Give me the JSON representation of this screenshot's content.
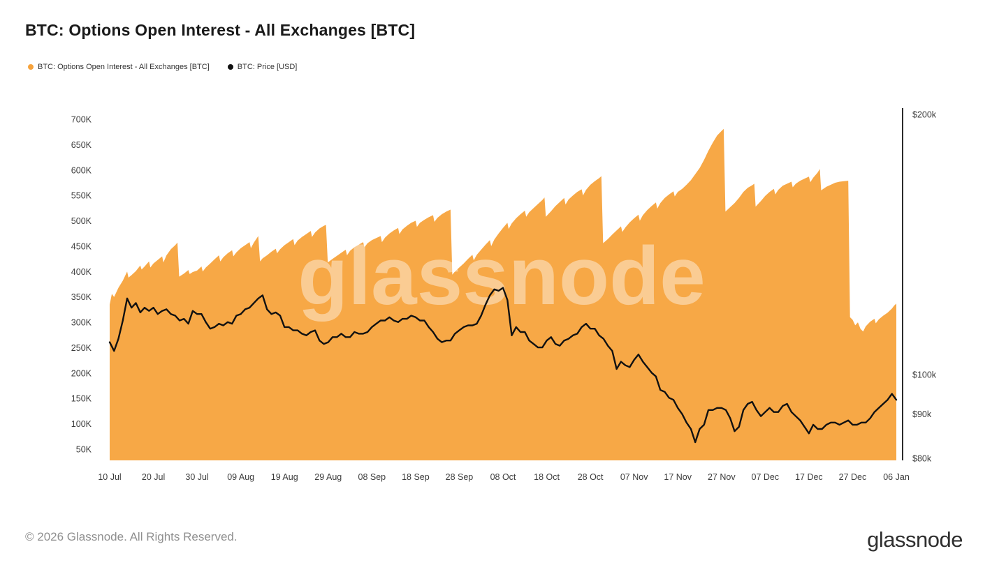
{
  "title": "BTC: Options Open Interest - All Exchanges [BTC]",
  "legend": [
    {
      "label": "BTC: Options Open Interest - All Exchanges [BTC]",
      "color": "#f7a33c"
    },
    {
      "label": "BTC: Price [USD]",
      "color": "#111111"
    }
  ],
  "footer": {
    "copyright": "© 2026 Glassnode. All Rights Reserved.",
    "logo": "glassnode"
  },
  "chart_data": {
    "type": "mixed",
    "title": "BTC: Options Open Interest - All Exchanges [BTC]",
    "grid": false,
    "watermark": "glassnode",
    "x_range_days": [
      0,
      180
    ],
    "x_axis": {
      "ticks": [
        {
          "day": 0,
          "label": "10 Jul"
        },
        {
          "day": 10,
          "label": "20 Jul"
        },
        {
          "day": 20,
          "label": "30 Jul"
        },
        {
          "day": 30,
          "label": "09 Aug"
        },
        {
          "day": 40,
          "label": "19 Aug"
        },
        {
          "day": 50,
          "label": "29 Aug"
        },
        {
          "day": 60,
          "label": "08 Sep"
        },
        {
          "day": 70,
          "label": "18 Sep"
        },
        {
          "day": 80,
          "label": "28 Sep"
        },
        {
          "day": 90,
          "label": "08 Oct"
        },
        {
          "day": 100,
          "label": "18 Oct"
        },
        {
          "day": 110,
          "label": "28 Oct"
        },
        {
          "day": 120,
          "label": "07 Nov"
        },
        {
          "day": 130,
          "label": "17 Nov"
        },
        {
          "day": 140,
          "label": "27 Nov"
        },
        {
          "day": 150,
          "label": "07 Dec"
        },
        {
          "day": 160,
          "label": "17 Dec"
        },
        {
          "day": 170,
          "label": "27 Dec"
        },
        {
          "day": 180,
          "label": "06 Jan"
        }
      ]
    },
    "left_axis": {
      "unit": "K",
      "ticks": [
        700,
        650,
        600,
        550,
        500,
        450,
        400,
        350,
        300,
        250,
        200,
        150,
        100,
        50
      ]
    },
    "right_axis": {
      "scale": "log",
      "ticks": [
        {
          "value": 200,
          "label": "$200k"
        },
        {
          "value": 100,
          "label": "$100k"
        },
        {
          "value": 90,
          "label": "$90k"
        },
        {
          "value": 80,
          "label": "$80k"
        }
      ]
    },
    "series": [
      {
        "name": "BTC: Options Open Interest - All Exchanges [BTC]",
        "type": "area",
        "axis": "left",
        "unit": "K BTC",
        "color": "#f7a33c",
        "points": [
          [
            0,
            335
          ],
          [
            0.5,
            356
          ],
          [
            1,
            350
          ],
          [
            2,
            368
          ],
          [
            3,
            382
          ],
          [
            4,
            400
          ],
          [
            4.3,
            388
          ],
          [
            5,
            393
          ],
          [
            6,
            401
          ],
          [
            7,
            412
          ],
          [
            7.3,
            404
          ],
          [
            8,
            410
          ],
          [
            9,
            420
          ],
          [
            9.3,
            408
          ],
          [
            10,
            416
          ],
          [
            11,
            423
          ],
          [
            12,
            430
          ],
          [
            12.3,
            418
          ],
          [
            13,
            432
          ],
          [
            14,
            444
          ],
          [
            15,
            452
          ],
          [
            15.5,
            457
          ],
          [
            15.9,
            390
          ],
          [
            17,
            396
          ],
          [
            18,
            403
          ],
          [
            18.3,
            395
          ],
          [
            19,
            399
          ],
          [
            20,
            402
          ],
          [
            21,
            410
          ],
          [
            21.3,
            400
          ],
          [
            22,
            408
          ],
          [
            23,
            416
          ],
          [
            24,
            424
          ],
          [
            25,
            432
          ],
          [
            25.3,
            420
          ],
          [
            26,
            428
          ],
          [
            27,
            436
          ],
          [
            28,
            442
          ],
          [
            28.3,
            430
          ],
          [
            29,
            438
          ],
          [
            30,
            446
          ],
          [
            31,
            452
          ],
          [
            32,
            458
          ],
          [
            32.3,
            446
          ],
          [
            33,
            457
          ],
          [
            34,
            470
          ],
          [
            34.4,
            420
          ],
          [
            35,
            426
          ],
          [
            36,
            432
          ],
          [
            37,
            439
          ],
          [
            38,
            445
          ],
          [
            38.3,
            436
          ],
          [
            39,
            444
          ],
          [
            40,
            452
          ],
          [
            41,
            458
          ],
          [
            42,
            464
          ],
          [
            42.3,
            452
          ],
          [
            43,
            461
          ],
          [
            44,
            468
          ],
          [
            45,
            474
          ],
          [
            46,
            480
          ],
          [
            46.3,
            468
          ],
          [
            47,
            477
          ],
          [
            48,
            485
          ],
          [
            49,
            490
          ],
          [
            49.5,
            492
          ],
          [
            49.9,
            418
          ],
          [
            51,
            425
          ],
          [
            52,
            431
          ],
          [
            53,
            437
          ],
          [
            54,
            443
          ],
          [
            54.3,
            432
          ],
          [
            55,
            441
          ],
          [
            56,
            448
          ],
          [
            57,
            453
          ],
          [
            58,
            458
          ],
          [
            58.3,
            448
          ],
          [
            59,
            456
          ],
          [
            60,
            462
          ],
          [
            61,
            466
          ],
          [
            62,
            470
          ],
          [
            62.3,
            458
          ],
          [
            63,
            467
          ],
          [
            64,
            475
          ],
          [
            65,
            481
          ],
          [
            66,
            486
          ],
          [
            66.3,
            474
          ],
          [
            67,
            483
          ],
          [
            68,
            490
          ],
          [
            69,
            496
          ],
          [
            70,
            500
          ],
          [
            70.3,
            488
          ],
          [
            71,
            496
          ],
          [
            72,
            502
          ],
          [
            73,
            507
          ],
          [
            74,
            511
          ],
          [
            74.3,
            498
          ],
          [
            75,
            506
          ],
          [
            76,
            513
          ],
          [
            77,
            518
          ],
          [
            78,
            522
          ],
          [
            78.4,
            394
          ],
          [
            79,
            400
          ],
          [
            80,
            408
          ],
          [
            81,
            416
          ],
          [
            82,
            425
          ],
          [
            83,
            433
          ],
          [
            83.3,
            422
          ],
          [
            84,
            433
          ],
          [
            85,
            443
          ],
          [
            86,
            453
          ],
          [
            87,
            462
          ],
          [
            87.3,
            450
          ],
          [
            88,
            463
          ],
          [
            89,
            475
          ],
          [
            90,
            486
          ],
          [
            91,
            496
          ],
          [
            91.3,
            484
          ],
          [
            92,
            495
          ],
          [
            93,
            505
          ],
          [
            94,
            513
          ],
          [
            95,
            520
          ],
          [
            95.3,
            508
          ],
          [
            96,
            517
          ],
          [
            97,
            525
          ],
          [
            98,
            533
          ],
          [
            99,
            541
          ],
          [
            99.5,
            546
          ],
          [
            99.8,
            508
          ],
          [
            101,
            519
          ],
          [
            102,
            529
          ],
          [
            103,
            537
          ],
          [
            104,
            545
          ],
          [
            104.3,
            532
          ],
          [
            105,
            542
          ],
          [
            106,
            550
          ],
          [
            107,
            557
          ],
          [
            108,
            562
          ],
          [
            108.3,
            550
          ],
          [
            109,
            561
          ],
          [
            110,
            571
          ],
          [
            111,
            578
          ],
          [
            112,
            584
          ],
          [
            112.5,
            588
          ],
          [
            112.9,
            456
          ],
          [
            114,
            464
          ],
          [
            115,
            473
          ],
          [
            116,
            481
          ],
          [
            117,
            489
          ],
          [
            117.3,
            478
          ],
          [
            118,
            487
          ],
          [
            119,
            497
          ],
          [
            120,
            505
          ],
          [
            121,
            512
          ],
          [
            121.3,
            500
          ],
          [
            122,
            511
          ],
          [
            123,
            521
          ],
          [
            124,
            529
          ],
          [
            125,
            536
          ],
          [
            125.3,
            524
          ],
          [
            126,
            535
          ],
          [
            127,
            545
          ],
          [
            128,
            552
          ],
          [
            129,
            558
          ],
          [
            129.3,
            548
          ],
          [
            130,
            557
          ],
          [
            131,
            563
          ],
          [
            132,
            571
          ],
          [
            133,
            580
          ],
          [
            134,
            592
          ],
          [
            135,
            604
          ],
          [
            136,
            620
          ],
          [
            137,
            638
          ],
          [
            138,
            654
          ],
          [
            139,
            668
          ],
          [
            140,
            677
          ],
          [
            140.5,
            681
          ],
          [
            140.9,
            518
          ],
          [
            142,
            527
          ],
          [
            143,
            535
          ],
          [
            144,
            545
          ],
          [
            145,
            557
          ],
          [
            146,
            565
          ],
          [
            147,
            570
          ],
          [
            147.5,
            573
          ],
          [
            147.8,
            528
          ],
          [
            149,
            539
          ],
          [
            150,
            549
          ],
          [
            151,
            557
          ],
          [
            152,
            563
          ],
          [
            152.3,
            552
          ],
          [
            153,
            561
          ],
          [
            154,
            569
          ],
          [
            155,
            573
          ],
          [
            156,
            577
          ],
          [
            156.3,
            566
          ],
          [
            157,
            573
          ],
          [
            158,
            579
          ],
          [
            159,
            583
          ],
          [
            160,
            587
          ],
          [
            160.3,
            576
          ],
          [
            161,
            585
          ],
          [
            162,
            595
          ],
          [
            162.5,
            602
          ],
          [
            162.8,
            560
          ],
          [
            164,
            567
          ],
          [
            165,
            571
          ],
          [
            166,
            575
          ],
          [
            167,
            577
          ],
          [
            168,
            578
          ],
          [
            169,
            579
          ],
          [
            169.4,
            310
          ],
          [
            170,
            305
          ],
          [
            170.6,
            294
          ],
          [
            171.2,
            300
          ],
          [
            171.8,
            287
          ],
          [
            172.4,
            282
          ],
          [
            173,
            292
          ],
          [
            174,
            301
          ],
          [
            175,
            307
          ],
          [
            175.3,
            298
          ],
          [
            176,
            306
          ],
          [
            177,
            313
          ],
          [
            178,
            319
          ],
          [
            179,
            327
          ],
          [
            179.5,
            333
          ],
          [
            180,
            337
          ]
        ]
      },
      {
        "name": "BTC: Price [USD]",
        "type": "line",
        "axis": "right",
        "unit": "USD thousands",
        "color": "#111111",
        "x_step_days": 1,
        "values": [
          109,
          106.5,
          110,
          115.5,
          122.5,
          119.5,
          121,
          118,
          119.5,
          118.5,
          119.5,
          117.5,
          118.5,
          119,
          117.5,
          117,
          115.5,
          116,
          114.5,
          118.5,
          117.5,
          117.5,
          115,
          113,
          113.5,
          114.5,
          114,
          115,
          114.5,
          117,
          117.5,
          119,
          119.5,
          121,
          122.5,
          123.5,
          119,
          117.5,
          118,
          117,
          113.5,
          113.5,
          112.5,
          112.5,
          111.5,
          111,
          112,
          112.5,
          109.5,
          108.5,
          109,
          110.5,
          110.5,
          111.5,
          110.5,
          110.5,
          112,
          111.5,
          111.5,
          112,
          113.5,
          114.5,
          115.5,
          115.5,
          116.5,
          115.5,
          115,
          116,
          116,
          117,
          116.5,
          115.5,
          115.5,
          113.5,
          112,
          110,
          109,
          109.5,
          109.5,
          111.5,
          112.5,
          113.5,
          114,
          114,
          114.5,
          117,
          120.5,
          123.5,
          125.5,
          125,
          126,
          122,
          111,
          113.5,
          112,
          112,
          109.5,
          108.5,
          107.5,
          107.5,
          109.5,
          110.5,
          108.5,
          108,
          109.5,
          110,
          111,
          111.5,
          113.5,
          114.5,
          113,
          113,
          111,
          110,
          108,
          106.5,
          101.5,
          103.5,
          102.5,
          102,
          104,
          105.5,
          103.5,
          102,
          100.5,
          99.5,
          96,
          95.5,
          94,
          93.5,
          91.5,
          90,
          88,
          86.5,
          83.5,
          86.5,
          87.5,
          91,
          91,
          91.5,
          91.5,
          91,
          89,
          86,
          87,
          91,
          92.5,
          93,
          91,
          89.5,
          90.5,
          91.5,
          90.5,
          90.5,
          92,
          92.5,
          90.5,
          89.5,
          88.5,
          87,
          85.5,
          87.5,
          86.5,
          86.5,
          87.5,
          88,
          88,
          87.5,
          88,
          88.5,
          87.5,
          87.5,
          88,
          88,
          89,
          90.5,
          91.5,
          92.5,
          93.5,
          95,
          93.5
        ]
      }
    ]
  }
}
